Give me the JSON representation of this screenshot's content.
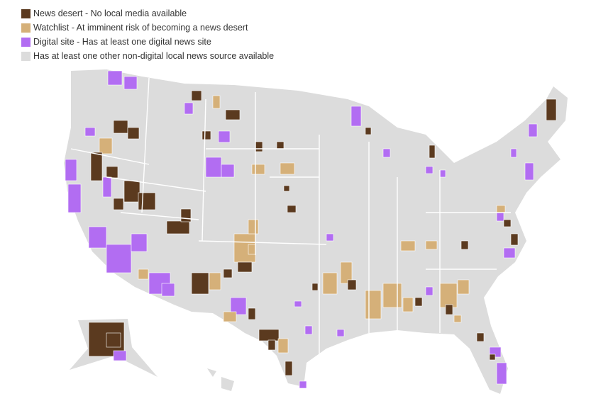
{
  "legend": {
    "items": [
      {
        "label": "News desert - No local media available",
        "color": "#5b3a1f"
      },
      {
        "label": "Watchlist - At imminent risk of becoming a news desert",
        "color": "#d5b079"
      },
      {
        "label": "Digital site - Has at least one digital news site",
        "color": "#b26df2"
      },
      {
        "label": "Has at least one other non-digital local news source available",
        "color": "#dcdcdc"
      }
    ]
  }
}
